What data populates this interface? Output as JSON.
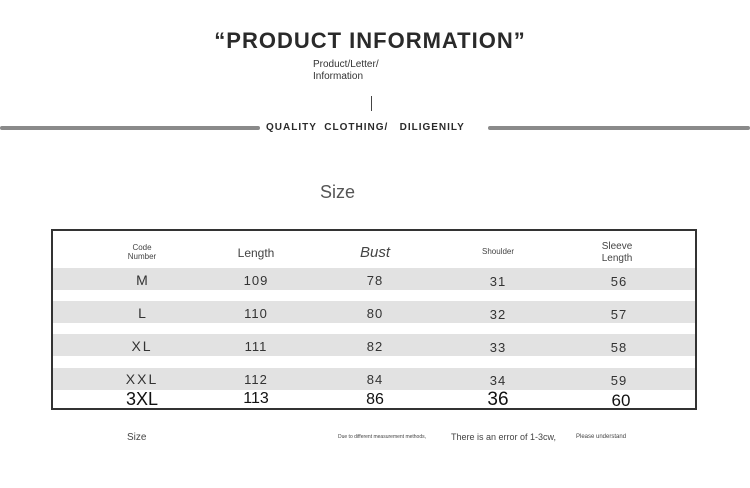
{
  "header": {
    "title": "“PRODUCT INFORMATION”",
    "subtitle": "Product/Letter/ Information",
    "band_text": "QUALITY  CLOTHING/   DILIGENILY"
  },
  "section": {
    "title": "Size"
  },
  "table": {
    "headers": [
      "Code Number",
      "Length",
      "Bust",
      "Shoulder",
      "Sleeve Length"
    ],
    "rows": [
      [
        "M",
        "109",
        "78",
        "31",
        "56"
      ],
      [
        "L",
        "110",
        "80",
        "32",
        "57"
      ],
      [
        "XL",
        "111",
        "82",
        "33",
        "58"
      ],
      [
        "XXL",
        "112",
        "84",
        "34",
        "59"
      ],
      [
        "3XL",
        "113",
        "86",
        "36",
        "60"
      ]
    ]
  },
  "footer": {
    "size_label": "Size",
    "note_1": "Due to different measurement methods,",
    "note_2": "There is an error of 1-3cw,",
    "note_3": "Please understand"
  }
}
